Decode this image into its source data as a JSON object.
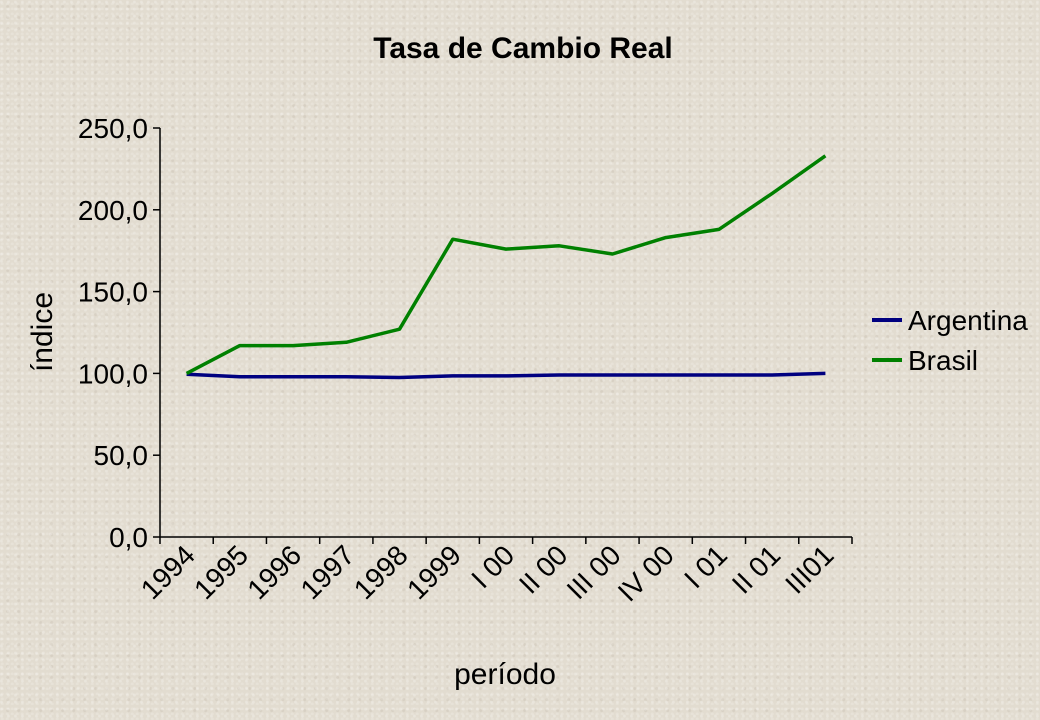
{
  "chart_data": {
    "type": "line",
    "title": "Tasa de Cambio Real",
    "xlabel": "período",
    "ylabel": "índice",
    "ylim": [
      0,
      250
    ],
    "y_ticks": [
      "0,0",
      "50,0",
      "100,0",
      "150,0",
      "200,0",
      "250,0"
    ],
    "y_tick_values": [
      0,
      50,
      100,
      150,
      200,
      250
    ],
    "categories": [
      "1994",
      "1995",
      "1996",
      "1997",
      "1998",
      "1999",
      "I 00",
      "II 00",
      "III 00",
      "IV 00",
      "I 01",
      "II 01",
      "III01"
    ],
    "series": [
      {
        "name": "Argentina",
        "color": "#000080",
        "values": [
          99.5,
          98.0,
          98.0,
          98.0,
          97.5,
          98.5,
          98.5,
          99.0,
          99.0,
          99.0,
          99.0,
          99.0,
          100.0
        ]
      },
      {
        "name": "Brasil",
        "color": "#008000",
        "values": [
          100.0,
          117.0,
          117.0,
          119.0,
          127.0,
          182.0,
          176.0,
          178.0,
          173.0,
          183.0,
          188.0,
          210.0,
          233.0
        ]
      }
    ],
    "legend": "right",
    "grid": false
  }
}
